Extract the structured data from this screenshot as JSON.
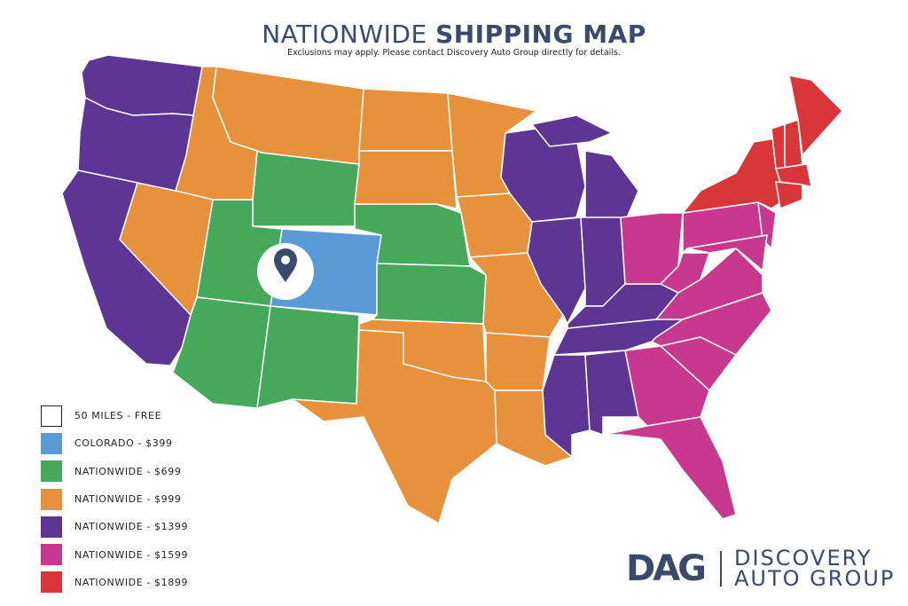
{
  "header": {
    "title_light": "NATIONWIDE",
    "title_bold": "SHIPPING MAP",
    "subtitle": "Exclusions may apply. Please contact Discovery Auto Group directly for details."
  },
  "legend": [
    {
      "label": "50 MILES - FREE",
      "color": "#ffffff",
      "tier": "free"
    },
    {
      "label": "COLORADO - $399",
      "color": "#5b9bd5",
      "tier": "colorado"
    },
    {
      "label": "NATIONWIDE - $699",
      "color": "#46a85a",
      "tier": "t699"
    },
    {
      "label": "NATIONWIDE - $999",
      "color": "#e8913c",
      "tier": "t999"
    },
    {
      "label": "NATIONWIDE - $1399",
      "color": "#5e3592",
      "tier": "t1399"
    },
    {
      "label": "NATIONWIDE - $1599",
      "color": "#c8388f",
      "tier": "t1599"
    },
    {
      "label": "NATIONWIDE - $1899",
      "color": "#d9363a",
      "tier": "t1899"
    }
  ],
  "regions": {
    "colorado": [
      "CO"
    ],
    "t699": [
      "WY",
      "UT",
      "AZ",
      "NM",
      "NE",
      "KS"
    ],
    "t999": [
      "ID",
      "MT",
      "NV",
      "ND",
      "SD",
      "MN",
      "IA",
      "MO",
      "AR",
      "LA",
      "OK",
      "TX"
    ],
    "t1399": [
      "WA",
      "OR",
      "CA",
      "WI",
      "MI",
      "IL",
      "IN",
      "KY",
      "TN",
      "MS",
      "AL"
    ],
    "t1599": [
      "OH",
      "PA",
      "WV",
      "VA",
      "NC",
      "SC",
      "GA",
      "FL",
      "NJ",
      "MD"
    ],
    "t1899": [
      "NY",
      "VT",
      "NH",
      "ME",
      "MA",
      "CT"
    ]
  },
  "marker": {
    "icon": "map-pin-icon",
    "state": "CO",
    "color": "#3b4a6b"
  },
  "logo": {
    "mark": "DAG",
    "line1": "DISCOVERY",
    "line2": "AUTO GROUP",
    "color": "#3b4a6b"
  }
}
